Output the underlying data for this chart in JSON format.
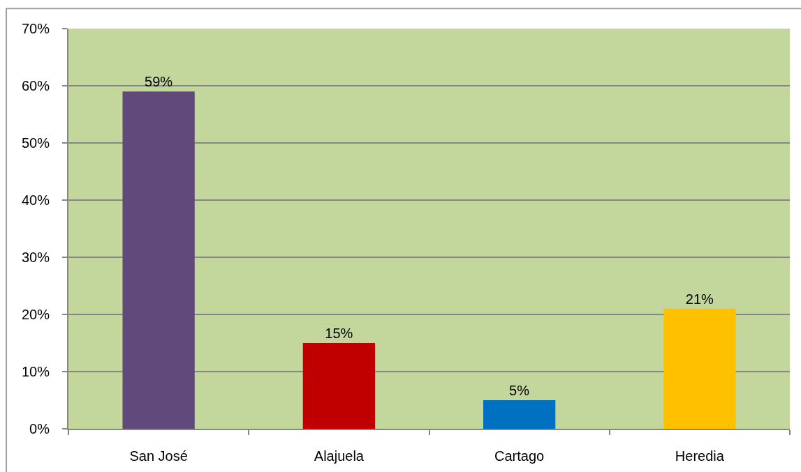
{
  "chart_data": {
    "type": "bar",
    "categories": [
      "San José",
      "Alajuela",
      "Cartago",
      "Heredia"
    ],
    "values": [
      59,
      15,
      5,
      21
    ],
    "colors": [
      "#604a7b",
      "#c00000",
      "#0070c0",
      "#ffc000"
    ],
    "value_labels": [
      "59%",
      "15%",
      "5%",
      "21%"
    ],
    "ylim": [
      0,
      70
    ],
    "yticks": [
      {
        "value": 0,
        "label": "0%"
      },
      {
        "value": 10,
        "label": "10%"
      },
      {
        "value": 20,
        "label": "20%"
      },
      {
        "value": 30,
        "label": "30%"
      },
      {
        "value": 40,
        "label": "40%"
      },
      {
        "value": 50,
        "label": "50%"
      },
      {
        "value": 60,
        "label": "60%"
      },
      {
        "value": 70,
        "label": "70%"
      }
    ],
    "grid": "y"
  }
}
